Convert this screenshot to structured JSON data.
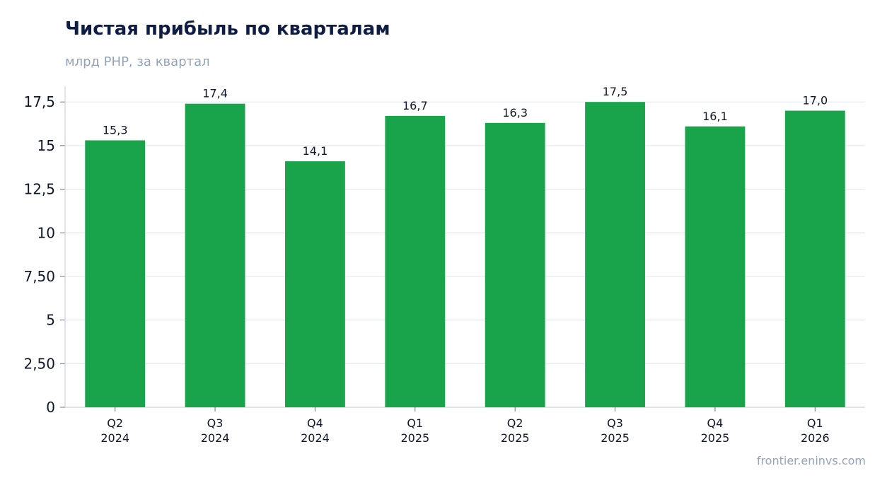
{
  "chart_data": {
    "type": "bar",
    "title": "Чистая прибыль по кварталам",
    "subtitle": "млрд РНР, за квартал",
    "source": "frontier.eninvs.com",
    "categories": [
      [
        "Q2",
        "2024"
      ],
      [
        "Q3",
        "2024"
      ],
      [
        "Q4",
        "2024"
      ],
      [
        "Q1",
        "2025"
      ],
      [
        "Q2",
        "2025"
      ],
      [
        "Q3",
        "2025"
      ],
      [
        "Q4",
        "2025"
      ],
      [
        "Q1",
        "2026"
      ]
    ],
    "values": [
      15.3,
      17.4,
      14.1,
      16.7,
      16.3,
      17.5,
      16.1,
      17.0
    ],
    "value_labels": [
      "15,3",
      "17,4",
      "14,1",
      "16,7",
      "16,3",
      "17,5",
      "16,1",
      "17,0"
    ],
    "yticks": [
      0,
      2.5,
      5,
      7.5,
      10,
      12.5,
      15,
      17.5
    ],
    "ytick_labels": [
      "0",
      "2,50",
      "5",
      "7,50",
      "10",
      "12,5",
      "15",
      "17,5"
    ],
    "ylim": [
      0,
      18.4
    ],
    "grid": true,
    "legend": "none",
    "bar_color": "#19a34a",
    "grid_color": "#e2e8f0",
    "axis_color": "#cbd5e1",
    "text_color": "#0f172a"
  }
}
